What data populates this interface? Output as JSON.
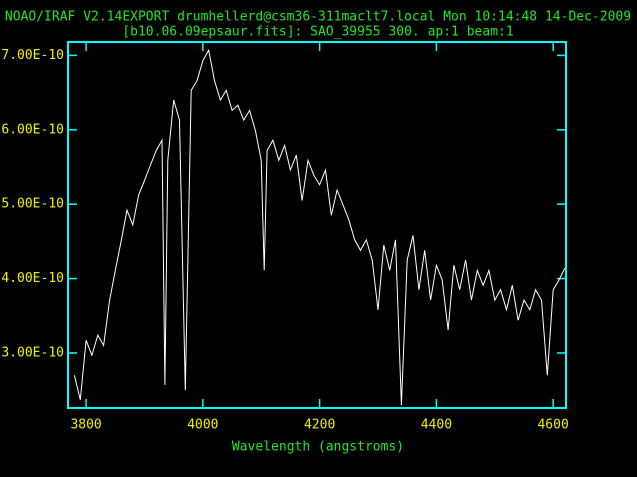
{
  "chart_data": {
    "type": "line",
    "title": "NOAO/IRAF V2.14EXPORT drumhellerd@csm36-311maclt7.local Mon 10:14:48 14-Dec-2009",
    "subtitle": "[b10.06.09epsaur.fits]: SAO_39955 300. ap:1 beam:1",
    "x_label": "Wavelength (angstroms)",
    "color": "#ffffff",
    "xlim": [
      3769,
      4622
    ],
    "ylim": [
      2.26e-10,
      7.18e-10
    ],
    "xticks": [
      3800,
      4000,
      4200,
      4400,
      4600
    ],
    "yticks": [
      {
        "value": 3e-10,
        "label": "3.00E-10"
      },
      {
        "value": 4e-10,
        "label": "4.00E-10"
      },
      {
        "value": 5e-10,
        "label": "5.00E-10"
      },
      {
        "value": 6e-10,
        "label": "6.00E-10"
      },
      {
        "value": 7e-10,
        "label": "7.00E-10"
      }
    ],
    "x": [
      3780,
      3790,
      3800,
      3810,
      3820,
      3830,
      3840,
      3850,
      3860,
      3870,
      3880,
      3890,
      3900,
      3910,
      3920,
      3930,
      3935,
      3940,
      3950,
      3960,
      3970,
      3980,
      3990,
      4000,
      4010,
      4020,
      4030,
      4040,
      4050,
      4060,
      4070,
      4080,
      4090,
      4100,
      4105,
      4110,
      4120,
      4130,
      4140,
      4150,
      4160,
      4170,
      4180,
      4190,
      4200,
      4210,
      4220,
      4230,
      4240,
      4250,
      4260,
      4270,
      4280,
      4290,
      4300,
      4310,
      4320,
      4330,
      4340,
      4350,
      4360,
      4370,
      4380,
      4390,
      4400,
      4410,
      4420,
      4430,
      4440,
      4450,
      4460,
      4470,
      4480,
      4490,
      4500,
      4510,
      4520,
      4530,
      4540,
      4550,
      4560,
      4570,
      4580,
      4590,
      4600,
      4610,
      4620
    ],
    "values": [
      2.7e-10,
      2.37e-10,
      3.17e-10,
      2.97e-10,
      3.24e-10,
      3.1e-10,
      3.7e-10,
      4.11e-10,
      4.5e-10,
      4.92e-10,
      4.72e-10,
      5.12e-10,
      5.32e-10,
      5.52e-10,
      5.72e-10,
      5.86e-10,
      2.57e-10,
      5.59e-10,
      6.4e-10,
      6.13e-10,
      2.5e-10,
      6.53e-10,
      6.66e-10,
      6.93e-10,
      7.07e-10,
      6.66e-10,
      6.4e-10,
      6.53e-10,
      6.26e-10,
      6.33e-10,
      6.13e-10,
      6.26e-10,
      5.99e-10,
      5.59e-10,
      4.11e-10,
      5.72e-10,
      5.86e-10,
      5.59e-10,
      5.79e-10,
      5.46e-10,
      5.66e-10,
      5.05e-10,
      5.59e-10,
      5.39e-10,
      5.26e-10,
      5.46e-10,
      4.85e-10,
      5.19e-10,
      4.99e-10,
      4.79e-10,
      4.52e-10,
      4.38e-10,
      4.52e-10,
      4.25e-10,
      3.58e-10,
      4.45e-10,
      4.11e-10,
      4.52e-10,
      2.3e-10,
      4.25e-10,
      4.58e-10,
      3.85e-10,
      4.38e-10,
      3.71e-10,
      4.18e-10,
      3.98e-10,
      3.31e-10,
      4.18e-10,
      3.85e-10,
      4.25e-10,
      3.71e-10,
      4.11e-10,
      3.91e-10,
      4.11e-10,
      3.71e-10,
      3.85e-10,
      3.58e-10,
      3.91e-10,
      3.44e-10,
      3.71e-10,
      3.58e-10,
      3.85e-10,
      3.71e-10,
      2.7e-10,
      3.85e-10,
      3.98e-10,
      4.14e-10
    ]
  }
}
